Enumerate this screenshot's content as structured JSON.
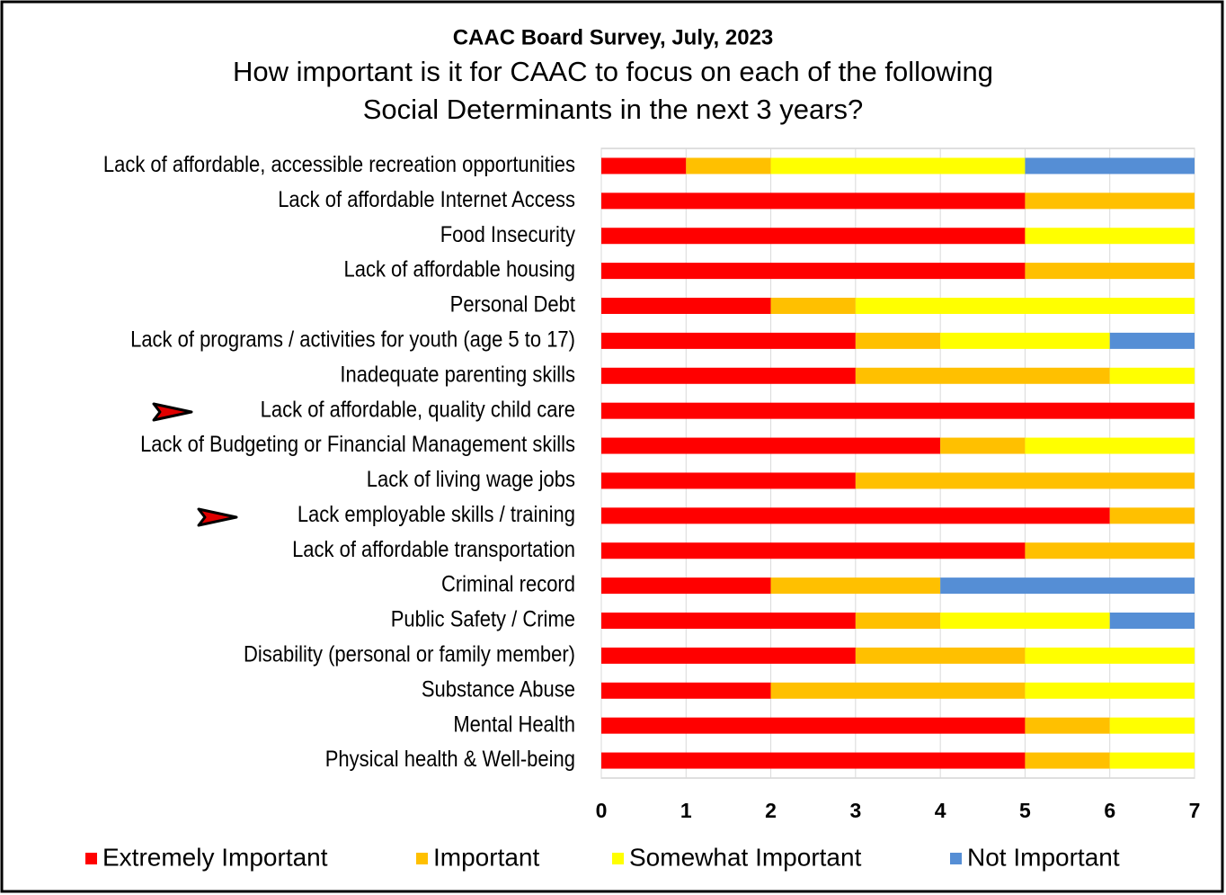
{
  "chart_data": {
    "type": "stacked_barh",
    "title": "CAAC Board Survey, July, 2023",
    "subtitle": [
      "How important is it for CAAC to focus on each of the following",
      "Social Determinants in the next 3 years?"
    ],
    "categories": [
      "Lack of affordable, accessible recreation opportunities",
      "Lack of affordable Internet Access",
      "Food Insecurity",
      "Lack of affordable housing",
      "Personal Debt",
      "Lack of programs / activities for youth (age 5 to 17)",
      "Inadequate parenting skills",
      "Lack of affordable, quality child care",
      "Lack of Budgeting or Financial Management skills",
      "Lack of living wage jobs",
      "Lack employable skills / training",
      "Lack of affordable transportation",
      "Criminal record",
      "Public Safety / Crime",
      "Disability (personal or family member)",
      "Substance Abuse",
      "Mental Health",
      "Physical health & Well-being"
    ],
    "series": [
      {
        "name": "Extremely Important",
        "color": "#ff0000",
        "values": [
          1,
          5,
          5,
          5,
          2,
          3,
          3,
          7,
          4,
          3,
          6,
          5,
          2,
          3,
          3,
          2,
          5,
          5
        ]
      },
      {
        "name": "Important",
        "color": "#ffc000",
        "values": [
          1,
          2,
          0,
          2,
          1,
          1,
          3,
          0,
          1,
          4,
          1,
          2,
          2,
          1,
          2,
          3,
          1,
          1
        ]
      },
      {
        "name": "Somewhat Important",
        "color": "#ffff00",
        "values": [
          3,
          0,
          2,
          0,
          4,
          2,
          1,
          0,
          2,
          0,
          0,
          0,
          0,
          2,
          2,
          2,
          1,
          1
        ]
      },
      {
        "name": "Not Important",
        "color": "#558ed5",
        "values": [
          2,
          0,
          0,
          0,
          0,
          1,
          0,
          0,
          0,
          0,
          0,
          0,
          3,
          1,
          0,
          0,
          0,
          0
        ]
      }
    ],
    "xlim": [
      0,
      7
    ],
    "xticks": [
      0,
      1,
      2,
      3,
      4,
      5,
      6,
      7
    ],
    "grid": true,
    "legend": "bottom"
  }
}
